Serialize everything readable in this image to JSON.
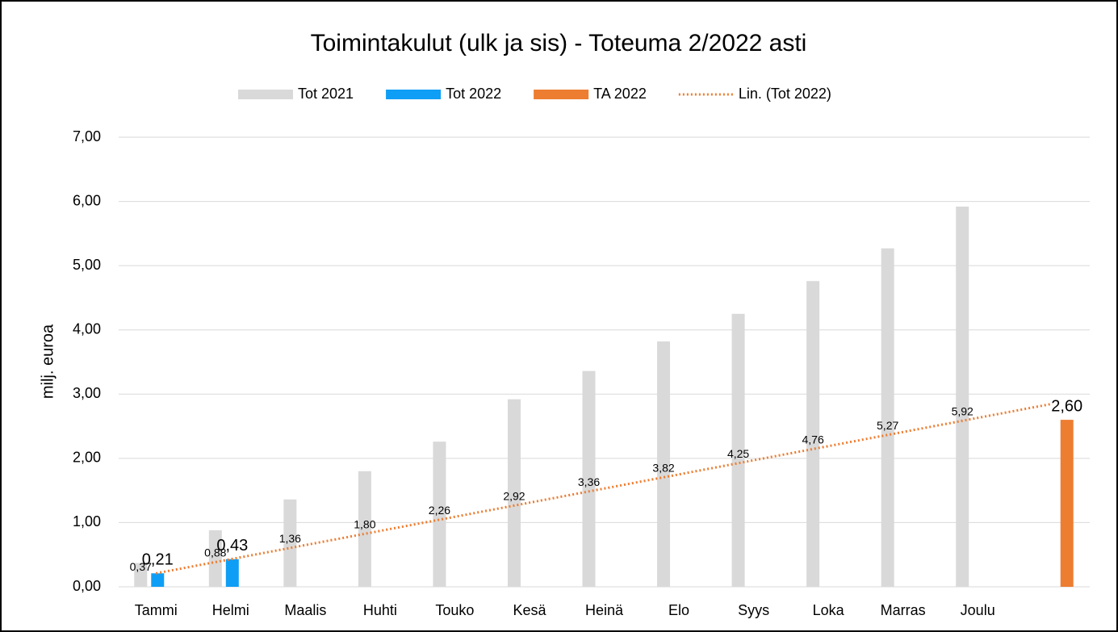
{
  "chart_data": {
    "type": "bar",
    "title": "Toimintakulut (ulk ja sis) - Toteuma 2/2022 asti",
    "y_label": "milj. euroa",
    "categories": [
      "Tammi",
      "Helmi",
      "Maalis",
      "Huhti",
      "Touko",
      "Kesä",
      "Heinä",
      "Elo",
      "Syys",
      "Loka",
      "Marras",
      "Joulu",
      null
    ],
    "series": [
      {
        "name": "Tot 2021",
        "color": "#d9d9d9",
        "values": [
          0.37,
          0.88,
          1.36,
          1.8,
          2.26,
          2.92,
          3.36,
          3.82,
          4.25,
          4.76,
          5.27,
          5.92,
          null
        ],
        "value_labels": [
          "0,37",
          "0,88",
          "1,36",
          "1,80",
          "2,26",
          "2,92",
          "3,36",
          "3,82",
          "4,25",
          "4,76",
          "5,27",
          "5,92",
          null
        ]
      },
      {
        "name": "Tot 2022",
        "color": "#0f9ef5",
        "values": [
          0.21,
          0.43,
          null,
          null,
          null,
          null,
          null,
          null,
          null,
          null,
          null,
          null,
          null
        ],
        "value_labels": [
          "0,21",
          "0,43",
          null,
          null,
          null,
          null,
          null,
          null,
          null,
          null,
          null,
          null,
          null
        ]
      },
      {
        "name": "TA 2022",
        "color": "#ed7d31",
        "values": [
          null,
          null,
          null,
          null,
          null,
          null,
          null,
          null,
          null,
          null,
          null,
          null,
          2.6
        ],
        "value_labels": [
          null,
          null,
          null,
          null,
          null,
          null,
          null,
          null,
          null,
          null,
          null,
          null,
          "2,60"
        ]
      },
      {
        "name": "Lin. (Tot 2022)",
        "color": "#ed7d31",
        "type": "line",
        "dash": "dotted",
        "values": [
          0.21,
          0.43,
          0.65,
          0.87,
          1.09,
          1.31,
          1.53,
          1.75,
          1.97,
          2.19,
          2.41,
          2.63,
          2.85
        ]
      }
    ],
    "ylim": [
      0,
      7
    ],
    "yticks": [
      {
        "value": 0,
        "label": "0,00"
      },
      {
        "value": 1,
        "label": "1,00"
      },
      {
        "value": 2,
        "label": "2,00"
      },
      {
        "value": 3,
        "label": "3,00"
      },
      {
        "value": 4,
        "label": "4,00"
      },
      {
        "value": 5,
        "label": "5,00"
      },
      {
        "value": 6,
        "label": "6,00"
      },
      {
        "value": 7,
        "label": "7,00"
      }
    ],
    "grid": true,
    "legend": "top"
  }
}
